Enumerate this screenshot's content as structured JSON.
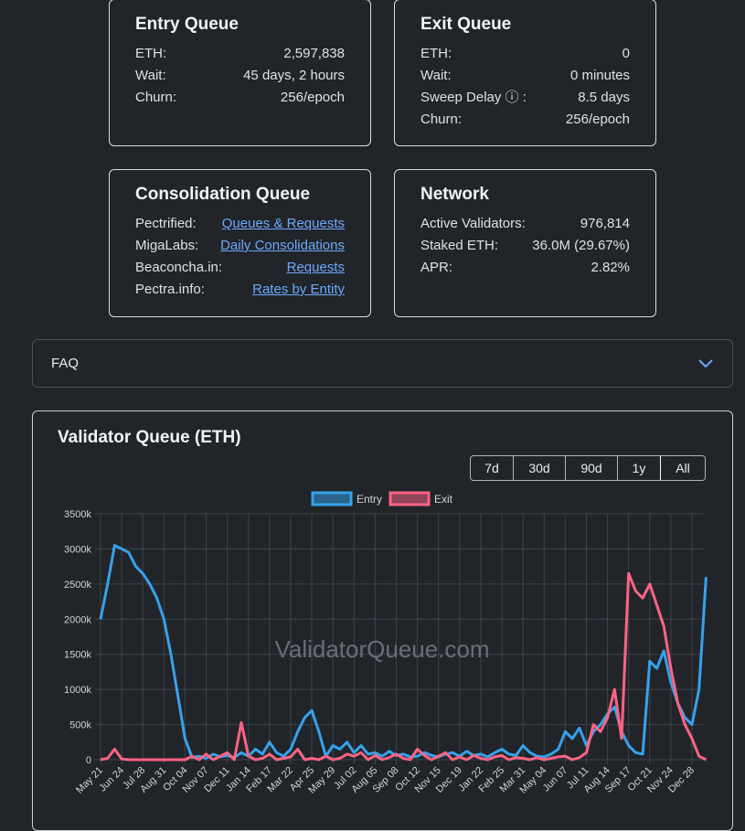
{
  "cards": [
    {
      "title": "Entry Queue",
      "rows": [
        {
          "label": "ETH:",
          "value": "2,597,838"
        },
        {
          "label": "Wait:",
          "value": "45 days, 2 hours"
        },
        {
          "label": "Churn:",
          "value": "256/epoch"
        }
      ]
    },
    {
      "title": "Exit Queue",
      "rows": [
        {
          "label": "ETH:",
          "value": "0"
        },
        {
          "label": "Wait:",
          "value": "0 minutes"
        },
        {
          "label": "Sweep Delay ⓘ :",
          "value": "8.5 days"
        },
        {
          "label": "Churn:",
          "value": "256/epoch"
        }
      ]
    },
    {
      "title": "Consolidation Queue",
      "rows": [
        {
          "label": "Pectrified:",
          "link": "Queues & Requests"
        },
        {
          "label": "MigaLabs:",
          "link": "Daily Consolidations"
        },
        {
          "label": "Beaconcha.in:",
          "link": "Requests"
        },
        {
          "label": "Pectra.info:",
          "link": "Rates by Entity"
        }
      ]
    },
    {
      "title": "Network",
      "rows": [
        {
          "label": "Active Validators:",
          "value": "976,814"
        },
        {
          "label": "Staked ETH:",
          "value": "36.0M (29.67%)"
        },
        {
          "label": "APR:",
          "value": "2.82%"
        }
      ]
    }
  ],
  "faq": {
    "label": "FAQ"
  },
  "chart_data": {
    "type": "line",
    "title": "Validator Queue (ETH)",
    "range_buttons": [
      {
        "label": "7d"
      },
      {
        "label": "30d"
      },
      {
        "label": "90d"
      },
      {
        "label": "1y"
      },
      {
        "label": "All",
        "active": true
      }
    ],
    "watermark": "ValidatorQueue.com",
    "categories": [
      "May 21",
      null,
      null,
      "Jun 24",
      null,
      null,
      "Jul 28",
      null,
      null,
      "Aug 31",
      null,
      null,
      "Oct 04",
      null,
      null,
      "Nov 07",
      null,
      null,
      "Dec 11",
      null,
      null,
      "Jan 14",
      null,
      null,
      "Feb 17",
      null,
      null,
      "Mar 22",
      null,
      null,
      "Apr 25",
      null,
      null,
      "May 29",
      null,
      null,
      "Jul 02",
      null,
      null,
      "Aug 05",
      null,
      null,
      "Sep 08",
      null,
      null,
      "Oct 12",
      null,
      null,
      "Nov 15",
      null,
      null,
      "Dec 19",
      null,
      null,
      "Jan 22",
      null,
      null,
      "Feb 25",
      null,
      null,
      "Mar 31",
      null,
      null,
      "May 04",
      null,
      null,
      "Jun 07",
      null,
      null,
      "Jul 11",
      null,
      null,
      "Aug 14",
      null,
      null,
      "Sep 17",
      null,
      null,
      "Oct 21",
      null,
      null,
      "Nov 24",
      null,
      null,
      "Dec 28",
      null,
      null
    ],
    "series": [
      {
        "name": "Entry",
        "color": "#36a2eb",
        "values": [
          2000,
          2500,
          3050,
          3000,
          2950,
          2750,
          2650,
          2500,
          2300,
          2000,
          1500,
          900,
          300,
          30,
          50,
          20,
          80,
          40,
          60,
          30,
          100,
          50,
          150,
          80,
          250,
          100,
          50,
          150,
          400,
          600,
          700,
          400,
          50,
          200,
          150,
          250,
          100,
          200,
          80,
          100,
          50,
          120,
          60,
          80,
          40,
          50,
          100,
          60,
          40,
          80,
          100,
          50,
          120,
          60,
          80,
          40,
          100,
          150,
          80,
          60,
          200,
          100,
          50,
          40,
          80,
          150,
          400,
          300,
          450,
          200,
          400,
          500,
          650,
          750,
          400,
          200,
          100,
          80,
          1400,
          1300,
          1550,
          1100,
          800,
          600,
          500,
          1000,
          2600
        ]
      },
      {
        "name": "Exit",
        "color": "#ff6384",
        "values": [
          0,
          20,
          150,
          10,
          0,
          0,
          0,
          0,
          0,
          0,
          0,
          0,
          0,
          50,
          0,
          80,
          0,
          50,
          100,
          0,
          530,
          50,
          0,
          20,
          80,
          0,
          20,
          40,
          150,
          0,
          20,
          0,
          50,
          0,
          20,
          80,
          50,
          100,
          0,
          60,
          0,
          30,
          80,
          20,
          0,
          150,
          60,
          0,
          50,
          100,
          0,
          40,
          0,
          60,
          20,
          0,
          40,
          60,
          0,
          30,
          20,
          0,
          30,
          0,
          20,
          40,
          50,
          0,
          30,
          100,
          500,
          400,
          600,
          1000,
          300,
          2650,
          2400,
          2300,
          2500,
          2200,
          1900,
          1300,
          800,
          500,
          300,
          50,
          0
        ]
      }
    ],
    "ylim": [
      0,
      3500
    ],
    "yticks": [
      {
        "value": 0,
        "label": "0"
      },
      {
        "value": 500,
        "label": "500k"
      },
      {
        "value": 1000,
        "label": "1000k"
      },
      {
        "value": 1500,
        "label": "1500k"
      },
      {
        "value": 2000,
        "label": "2000k"
      },
      {
        "value": 2500,
        "label": "2500k"
      },
      {
        "value": 3000,
        "label": "3000k"
      },
      {
        "value": 3500,
        "label": "3500k"
      }
    ],
    "grid": true
  }
}
